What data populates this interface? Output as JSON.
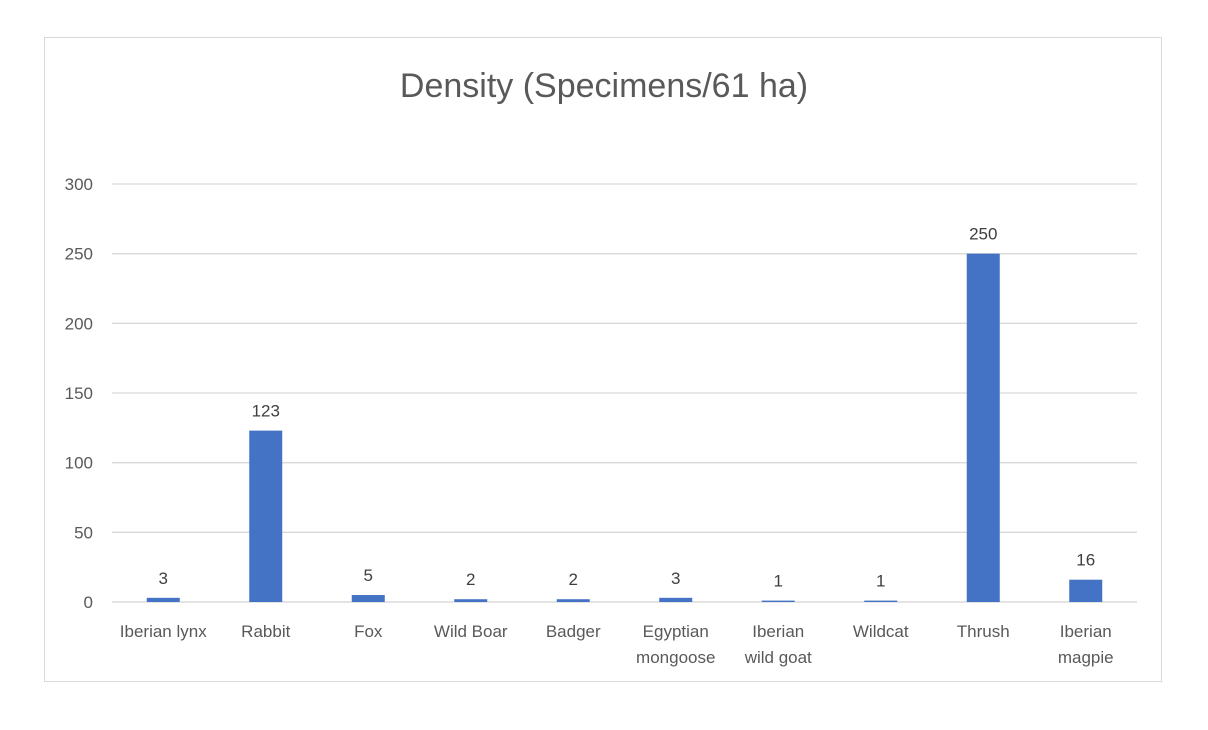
{
  "chart_data": {
    "type": "bar",
    "title": "Density (Specimens/61 ha)",
    "xlabel": "",
    "ylabel": "",
    "categories": [
      [
        "Iberian lynx"
      ],
      [
        "Rabbit"
      ],
      [
        "Fox"
      ],
      [
        "Wild Boar"
      ],
      [
        "Badger"
      ],
      [
        "Egyptian",
        "mongoose"
      ],
      [
        "Iberian",
        "wild goat"
      ],
      [
        "Wildcat"
      ],
      [
        "Thrush"
      ],
      [
        "Iberian",
        "magpie"
      ]
    ],
    "values": [
      3,
      123,
      5,
      2,
      2,
      3,
      1,
      1,
      250,
      16
    ],
    "ylim": [
      0,
      300
    ],
    "yticks": [
      0,
      50,
      100,
      150,
      200,
      250,
      300
    ],
    "grid": true,
    "legend": "none",
    "data_labels": true,
    "colors": {
      "bar": "#4472c4",
      "grid": "#d9d9d9",
      "text": "#595959",
      "data_label": "#404040"
    }
  }
}
